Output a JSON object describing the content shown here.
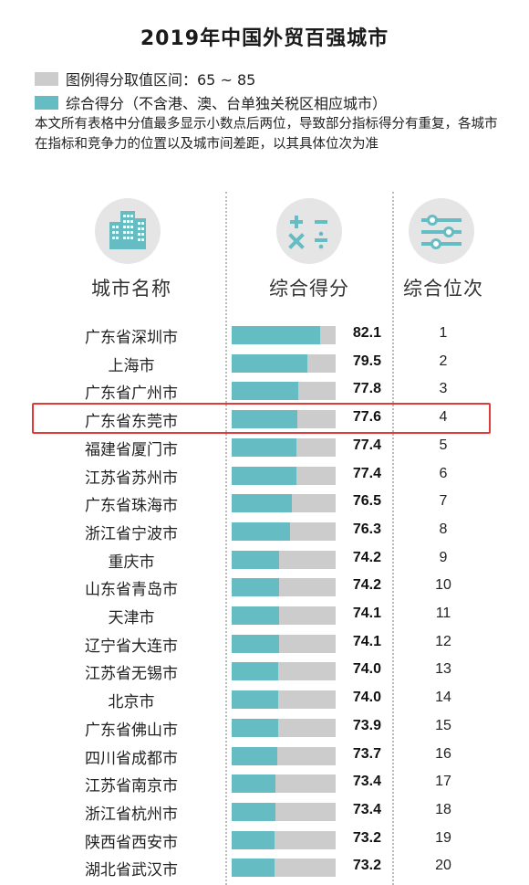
{
  "title": "2019年中国外贸百强城市",
  "legend": [
    {
      "label": "图例得分取值区间：65 ~ 85",
      "color": "#cccccc"
    },
    {
      "label": "综合得分（不含港、澳、台单独关税区相应城市）",
      "color": "#65bcc3"
    }
  ],
  "note": "本文所有表格中分值最多显示小数点后两位，导致部分指标得分有重复，各城市在指标和竞争力的位置以及城市间差距，以其具体位次为准",
  "columns": {
    "city": "城市名称",
    "score": "综合得分",
    "rank": "综合位次"
  },
  "icons": {
    "city": "city-buildings-icon",
    "score": "calculator-icon",
    "rank": "sliders-icon"
  },
  "colors": {
    "bar": "#65bcc3",
    "range": "#cccccc",
    "highlight": "#e03a3a"
  },
  "highlighted_row": 3,
  "chart_data": {
    "type": "bar",
    "orientation": "horizontal",
    "title": "2019年中国外贸百强城市",
    "xlim": [
      65,
      85
    ],
    "categories": [
      "广东省深圳市",
      "上海市",
      "广东省广州市",
      "广东省东莞市",
      "福建省厦门市",
      "江苏省苏州市",
      "广东省珠海市",
      "浙江省宁波市",
      "重庆市",
      "山东省青岛市",
      "天津市",
      "辽宁省大连市",
      "江苏省无锡市",
      "北京市",
      "广东省佛山市",
      "四川省成都市",
      "江苏省南京市",
      "浙江省杭州市",
      "陕西省西安市",
      "湖北省武汉市"
    ],
    "values": [
      82.1,
      79.5,
      77.8,
      77.6,
      77.4,
      77.4,
      76.5,
      76.3,
      74.2,
      74.2,
      74.1,
      74.1,
      74.0,
      74.0,
      73.9,
      73.7,
      73.4,
      73.4,
      73.2,
      73.2
    ],
    "value_labels": [
      "82.1",
      "79.5",
      "77.8",
      "77.6",
      "77.4",
      "77.4",
      "76.5",
      "76.3",
      "74.2",
      "74.2",
      "74.1",
      "74.1",
      "74.0",
      "74.0",
      "73.9",
      "73.7",
      "73.4",
      "73.4",
      "73.2",
      "73.2"
    ],
    "ranks": [
      "1",
      "2",
      "3",
      "4",
      "5",
      "6",
      "7",
      "8",
      "9",
      "10",
      "11",
      "12",
      "13",
      "14",
      "15",
      "16",
      "17",
      "18",
      "19",
      "20"
    ]
  }
}
